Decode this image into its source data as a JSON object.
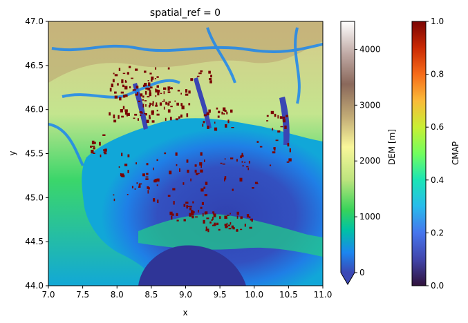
{
  "chart_data": {
    "type": "heatmap",
    "title": "spatial_ref = 0",
    "xlabel": "x",
    "ylabel": "y",
    "xlim": [
      7.0,
      11.0
    ],
    "ylim": [
      44.0,
      47.0
    ],
    "x_ticks": [
      7.0,
      7.5,
      8.0,
      8.5,
      9.0,
      9.5,
      10.0,
      10.5,
      11.0
    ],
    "y_ticks": [
      44.0,
      44.5,
      45.0,
      45.5,
      46.0,
      46.5,
      47.0
    ],
    "x_tick_labels": [
      "7.0",
      "7.5",
      "8.0",
      "8.5",
      "9.0",
      "9.5",
      "10.0",
      "10.5",
      "11.0"
    ],
    "y_tick_labels": [
      "44.0",
      "44.5",
      "45.0",
      "45.5",
      "46.0",
      "46.5",
      "47.0"
    ],
    "layers": [
      {
        "name": "DEM [m]",
        "colormap": "terrain",
        "vmin": 0,
        "vmax": 4500,
        "extend": "min",
        "ticks": [
          0,
          1000,
          2000,
          3000,
          4000
        ],
        "tick_labels": [
          "0",
          "1000",
          "2000",
          "3000",
          "4000"
        ]
      },
      {
        "name": "CMAP",
        "colormap": "turbo",
        "vmin": 0.0,
        "vmax": 1.0,
        "ticks": [
          0.0,
          0.2,
          0.4,
          0.6,
          0.8,
          1.0
        ],
        "tick_labels": [
          "0.0",
          "0.2",
          "0.4",
          "0.6",
          "0.8",
          "1.0"
        ]
      }
    ],
    "grid": false,
    "legend": "none"
  }
}
